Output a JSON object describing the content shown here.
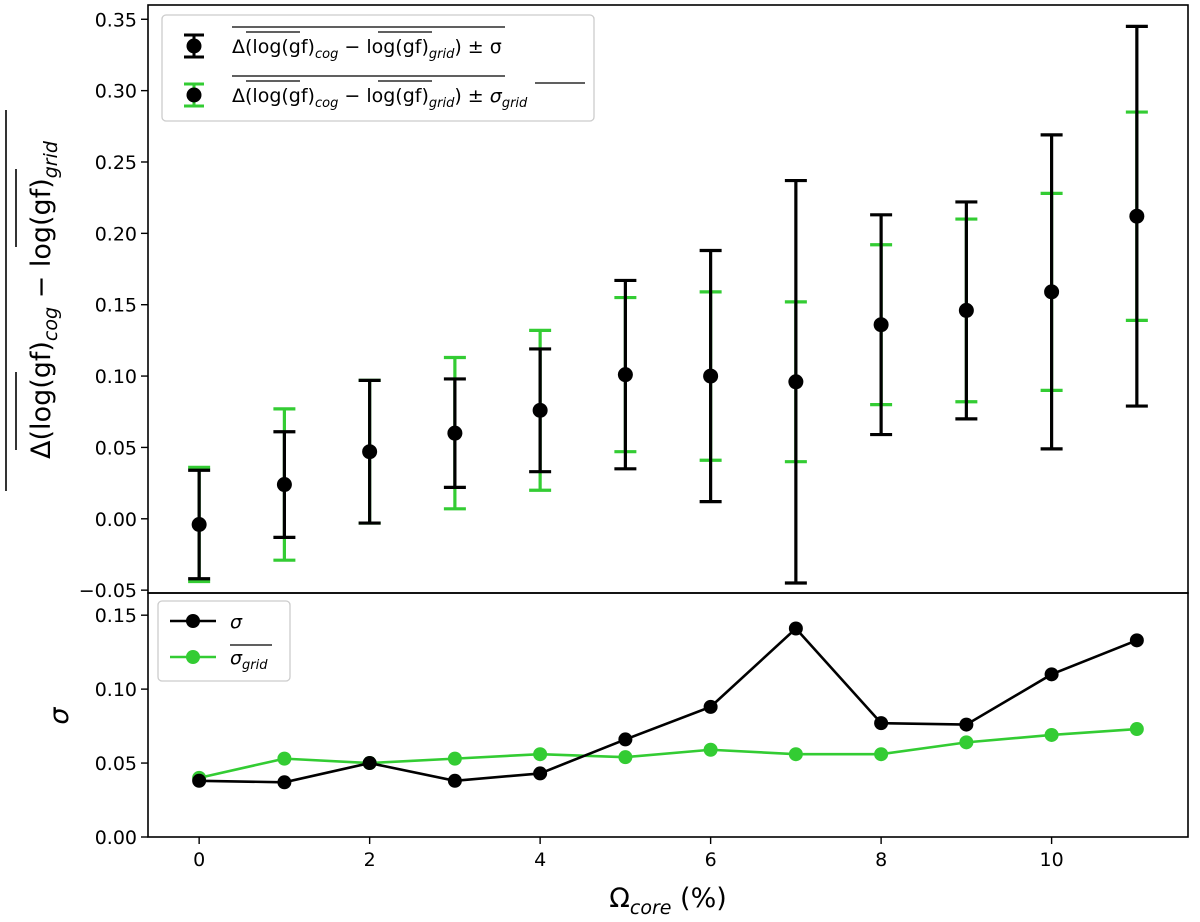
{
  "chart_data": [
    {
      "type": "errorbar",
      "panel": "top",
      "ylabel": "Δ(log(gf)_cog − log(gf)_grid)",
      "ylim": [
        -0.052,
        0.36
      ],
      "yticks": [
        -0.05,
        0.0,
        0.05,
        0.1,
        0.15,
        0.2,
        0.25,
        0.3,
        0.35
      ],
      "ytick_labels": [
        "−0.05",
        "0.00",
        "0.05",
        "0.10",
        "0.15",
        "0.20",
        "0.25",
        "0.30",
        "0.35"
      ],
      "x": [
        0,
        1,
        2,
        3,
        4,
        5,
        6,
        7,
        8,
        9,
        10,
        11
      ],
      "y": [
        -0.004,
        0.024,
        0.047,
        0.06,
        0.076,
        0.101,
        0.1,
        0.096,
        0.136,
        0.146,
        0.159,
        0.212
      ],
      "sigma": [
        0.038,
        0.037,
        0.05,
        0.038,
        0.043,
        0.066,
        0.088,
        0.141,
        0.077,
        0.076,
        0.11,
        0.133
      ],
      "sigma_grid": [
        0.04,
        0.053,
        0.05,
        0.053,
        0.056,
        0.054,
        0.059,
        0.056,
        0.056,
        0.064,
        0.069,
        0.073
      ],
      "legend": {
        "position": "upper-left",
        "entries": [
          {
            "prefix": "Δ(",
            "a": "log(gf)",
            "asub": "cog",
            "minus": " − ",
            "b": "log(gf)",
            "bsub": "grid",
            "suffix": ") ± σ",
            "color": "#000000"
          },
          {
            "prefix": "Δ(",
            "a": "log(gf)",
            "asub": "cog",
            "minus": " − ",
            "b": "log(gf)",
            "bsub": "grid",
            "suffix": ") ± ",
            "sym": "σ",
            "symsub": "grid",
            "color": "#33cc33"
          }
        ]
      },
      "colors": {
        "main": "#000000",
        "grid": "#33cc33"
      }
    },
    {
      "type": "line",
      "panel": "bottom",
      "ylabel": "σ",
      "xlabel": "Ω",
      "xlabel_sub": "core",
      "xlabel_suffix": " (%)",
      "xlim": [
        -0.6,
        11.6
      ],
      "ylim": [
        0.0,
        0.165
      ],
      "xticks": [
        0,
        2,
        4,
        6,
        8,
        10
      ],
      "xtick_labels": [
        "0",
        "2",
        "4",
        "6",
        "8",
        "10"
      ],
      "yticks": [
        0.0,
        0.05,
        0.1,
        0.15
      ],
      "ytick_labels": [
        "0.00",
        "0.05",
        "0.10",
        "0.15"
      ],
      "x": [
        0,
        1,
        2,
        3,
        4,
        5,
        6,
        7,
        8,
        9,
        10,
        11
      ],
      "series": [
        {
          "name": "σ",
          "color": "#000000",
          "values": [
            0.038,
            0.037,
            0.05,
            0.038,
            0.043,
            0.066,
            0.088,
            0.141,
            0.077,
            0.076,
            0.11,
            0.133
          ]
        },
        {
          "name": "σ",
          "sub": "grid",
          "overline": true,
          "color": "#33cc33",
          "values": [
            0.04,
            0.053,
            0.05,
            0.053,
            0.056,
            0.054,
            0.059,
            0.056,
            0.056,
            0.064,
            0.069,
            0.073
          ]
        }
      ],
      "legend": {
        "position": "upper-left"
      }
    }
  ]
}
